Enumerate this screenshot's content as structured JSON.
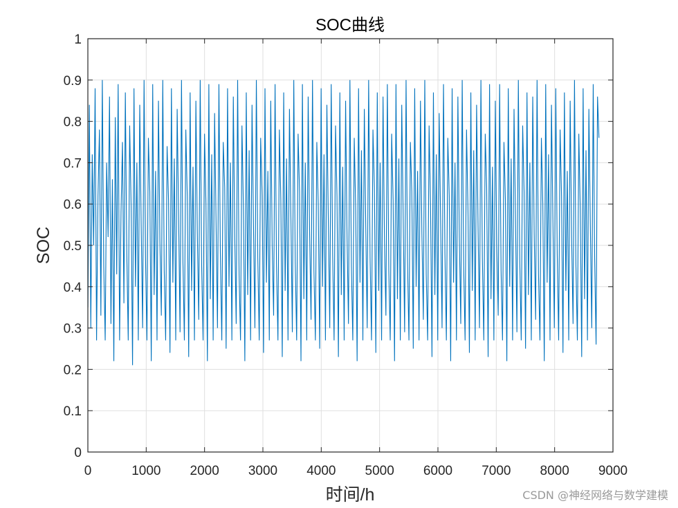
{
  "chart_data": {
    "type": "line",
    "title": "SOC曲线",
    "xlabel": "时间/h",
    "ylabel": "SOC",
    "xlim": [
      0,
      9000
    ],
    "ylim": [
      0,
      1
    ],
    "xticks": [
      0,
      1000,
      2000,
      3000,
      4000,
      5000,
      6000,
      7000,
      8000,
      9000
    ],
    "yticks": [
      0,
      0.1,
      0.2,
      0.3,
      0.4,
      0.5,
      0.6,
      0.7,
      0.8,
      0.9,
      1
    ],
    "grid": true,
    "line_color": "#0072BD",
    "series": [
      {
        "x_range": [
          1,
          8760
        ],
        "sample_step_h": 24,
        "values": [
          0.35,
          0.84,
          0.3,
          0.72,
          0.5,
          0.88,
          0.27,
          0.62,
          0.78,
          0.33,
          0.9,
          0.45,
          0.27,
          0.7,
          0.52,
          0.86,
          0.31,
          0.66,
          0.22,
          0.81,
          0.43,
          0.89,
          0.27,
          0.58,
          0.75,
          0.36,
          0.87,
          0.48,
          0.27,
          0.79,
          0.6,
          0.21,
          0.88,
          0.4,
          0.7,
          0.27,
          0.84,
          0.55,
          0.3,
          0.9,
          0.47,
          0.27,
          0.76,
          0.63,
          0.22,
          0.89,
          0.38,
          0.68,
          0.27,
          0.85,
          0.51,
          0.33,
          0.9,
          0.44,
          0.27,
          0.74,
          0.61,
          0.24,
          0.88,
          0.41,
          0.71,
          0.27,
          0.83,
          0.57,
          0.29,
          0.9,
          0.46,
          0.27,
          0.78,
          0.62,
          0.23,
          0.87,
          0.39,
          0.69,
          0.27,
          0.85,
          0.53,
          0.32,
          0.9,
          0.45,
          0.27,
          0.77,
          0.6,
          0.22,
          0.89,
          0.37,
          0.72,
          0.27,
          0.82,
          0.56,
          0.3,
          0.89,
          0.48,
          0.27,
          0.75,
          0.64,
          0.25,
          0.88,
          0.4,
          0.7,
          0.27,
          0.86,
          0.52,
          0.31,
          0.9,
          0.43,
          0.27,
          0.79,
          0.59,
          0.22,
          0.87,
          0.38,
          0.73,
          0.27,
          0.84,
          0.55,
          0.3,
          0.9,
          0.47,
          0.27,
          0.76,
          0.62,
          0.24,
          0.88,
          0.41,
          0.68,
          0.27,
          0.85,
          0.5,
          0.33,
          0.89,
          0.45,
          0.27,
          0.78,
          0.61,
          0.23,
          0.87,
          0.39,
          0.71,
          0.27,
          0.83,
          0.57,
          0.29,
          0.9,
          0.46,
          0.27,
          0.77,
          0.63,
          0.22,
          0.89,
          0.37,
          0.7,
          0.27,
          0.86,
          0.53,
          0.32,
          0.9,
          0.44,
          0.27,
          0.75,
          0.6,
          0.25,
          0.88,
          0.4,
          0.72,
          0.27,
          0.84,
          0.56,
          0.3,
          0.89,
          0.48,
          0.27,
          0.79,
          0.62,
          0.23,
          0.87,
          0.38,
          0.69,
          0.27,
          0.85,
          0.52,
          0.31,
          0.9,
          0.45,
          0.27,
          0.76,
          0.59,
          0.22,
          0.88,
          0.41,
          0.73,
          0.27,
          0.83,
          0.55,
          0.3,
          0.9,
          0.47,
          0.27,
          0.78,
          0.64,
          0.24,
          0.87,
          0.39,
          0.7,
          0.27,
          0.86,
          0.51,
          0.33,
          0.89,
          0.44,
          0.27,
          0.77,
          0.61,
          0.22,
          0.89,
          0.37,
          0.71,
          0.27,
          0.84,
          0.57,
          0.29,
          0.9,
          0.46,
          0.27,
          0.75,
          0.63,
          0.25,
          0.88,
          0.4,
          0.68,
          0.27,
          0.85,
          0.53,
          0.32,
          0.9,
          0.43,
          0.27,
          0.79,
          0.6,
          0.23,
          0.87,
          0.38,
          0.72,
          0.27,
          0.82,
          0.56,
          0.3,
          0.89,
          0.48,
          0.27,
          0.76,
          0.62,
          0.22,
          0.88,
          0.41,
          0.7,
          0.27,
          0.86,
          0.52,
          0.31,
          0.9,
          0.45,
          0.27,
          0.78,
          0.59,
          0.24,
          0.87,
          0.39,
          0.73,
          0.27,
          0.84,
          0.55,
          0.3,
          0.9,
          0.47,
          0.27,
          0.77,
          0.64,
          0.23,
          0.89,
          0.37,
          0.69,
          0.27,
          0.85,
          0.5,
          0.33,
          0.89,
          0.44,
          0.27,
          0.75,
          0.61,
          0.22,
          0.88,
          0.4,
          0.71,
          0.27,
          0.83,
          0.57,
          0.29,
          0.9,
          0.46,
          0.27,
          0.79,
          0.63,
          0.25,
          0.87,
          0.38,
          0.7,
          0.27,
          0.86,
          0.53,
          0.32,
          0.9,
          0.43,
          0.27,
          0.76,
          0.6,
          0.22,
          0.89,
          0.41,
          0.72,
          0.27,
          0.84,
          0.56,
          0.3,
          0.88,
          0.48,
          0.27,
          0.78,
          0.62,
          0.24,
          0.87,
          0.39,
          0.68,
          0.27,
          0.85,
          0.52,
          0.31,
          0.9,
          0.45,
          0.27,
          0.77,
          0.59,
          0.23,
          0.88,
          0.37,
          0.73,
          0.27,
          0.83,
          0.55,
          0.3,
          0.89,
          0.47,
          0.26,
          0.86,
          0.76
        ]
      }
    ]
  },
  "watermark": "CSDN @神经网络与数学建模"
}
